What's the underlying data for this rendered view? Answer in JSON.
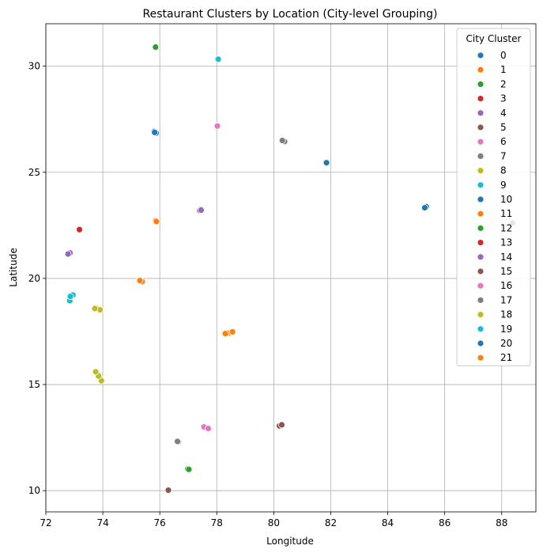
{
  "chart_data": {
    "type": "scatter",
    "title": "Restaurant Clusters by Location (City-level Grouping)",
    "xlabel": "Longitude",
    "ylabel": "Latitude",
    "xlim": [
      72,
      89.2
    ],
    "ylim": [
      9,
      32
    ],
    "xticks": [
      72,
      74,
      76,
      78,
      80,
      82,
      84,
      86,
      88
    ],
    "yticks": [
      10,
      15,
      20,
      25,
      30
    ],
    "grid": true,
    "legend": {
      "title": "City Cluster",
      "placement": "top-right"
    },
    "series": [
      {
        "name": "0",
        "color": "#1f77b4",
        "points": [
          [
            75.85,
            26.9
          ],
          [
            75.8,
            26.92
          ],
          [
            75.87,
            26.85
          ],
          [
            75.82,
            26.88
          ]
        ]
      },
      {
        "name": "1",
        "color": "#ff7f0e",
        "points": [
          [
            78.45,
            17.4
          ],
          [
            78.5,
            17.45
          ],
          [
            78.38,
            17.42
          ],
          [
            78.55,
            17.48
          ],
          [
            78.3,
            17.4
          ]
        ]
      },
      {
        "name": "2",
        "color": "#2ca02c",
        "points": [
          [
            76.98,
            11.02
          ],
          [
            77.02,
            11.0
          ]
        ]
      },
      {
        "name": "3",
        "color": "#d62728",
        "points": [
          [
            88.38,
            22.6
          ]
        ]
      },
      {
        "name": "4",
        "color": "#9467bd",
        "points": [
          [
            72.8,
            21.18
          ],
          [
            72.85,
            21.2
          ],
          [
            72.78,
            21.15
          ]
        ]
      },
      {
        "name": "5",
        "color": "#8c564b",
        "points": [
          [
            80.25,
            13.08
          ],
          [
            80.2,
            13.05
          ],
          [
            80.28,
            13.1
          ]
        ]
      },
      {
        "name": "6",
        "color": "#e377c2",
        "points": [
          [
            77.6,
            12.97
          ],
          [
            77.65,
            12.95
          ],
          [
            77.55,
            13.0
          ],
          [
            77.7,
            12.93
          ]
        ]
      },
      {
        "name": "7",
        "color": "#7f7f7f",
        "points": [
          [
            80.33,
            26.48
          ],
          [
            80.38,
            26.45
          ],
          [
            80.3,
            26.5
          ]
        ]
      },
      {
        "name": "8",
        "color": "#bcbd22",
        "points": [
          [
            73.78,
            18.6
          ],
          [
            73.85,
            18.55
          ],
          [
            73.9,
            18.52
          ],
          [
            73.72,
            18.58
          ]
        ]
      },
      {
        "name": "9",
        "color": "#17becf",
        "points": [
          [
            78.05,
            30.33
          ]
        ]
      },
      {
        "name": "10",
        "color": "#1f77b4",
        "points": [
          [
            85.35,
            23.38
          ],
          [
            85.3,
            23.33
          ]
        ]
      },
      {
        "name": "11",
        "color": "#ff7f0e",
        "points": [
          [
            75.85,
            22.72
          ],
          [
            75.88,
            22.68
          ]
        ]
      },
      {
        "name": "12",
        "color": "#2ca02c",
        "points": [
          [
            75.85,
            30.9
          ]
        ]
      },
      {
        "name": "13",
        "color": "#d62728",
        "points": [
          [
            73.18,
            22.3
          ]
        ]
      },
      {
        "name": "14",
        "color": "#9467bd",
        "points": [
          [
            77.42,
            23.25
          ],
          [
            77.4,
            23.2
          ],
          [
            77.45,
            23.22
          ]
        ]
      },
      {
        "name": "15",
        "color": "#8c564b",
        "points": [
          [
            76.3,
            10.02
          ]
        ]
      },
      {
        "name": "16",
        "color": "#e377c2",
        "points": [
          [
            78.02,
            27.18
          ]
        ]
      },
      {
        "name": "17",
        "color": "#7f7f7f",
        "points": [
          [
            76.65,
            12.3
          ],
          [
            76.62,
            12.32
          ]
        ]
      },
      {
        "name": "18",
        "color": "#bcbd22",
        "points": [
          [
            73.78,
            15.58
          ],
          [
            73.82,
            15.5
          ],
          [
            73.9,
            15.3
          ],
          [
            73.95,
            15.18
          ],
          [
            73.85,
            15.4
          ],
          [
            73.75,
            15.6
          ]
        ]
      },
      {
        "name": "19",
        "color": "#17becf",
        "points": [
          [
            72.85,
            19.05
          ],
          [
            72.87,
            19.1
          ],
          [
            72.9,
            19.2
          ],
          [
            72.83,
            19.0
          ],
          [
            72.88,
            19.12
          ],
          [
            72.95,
            19.22
          ],
          [
            72.84,
            18.95
          ],
          [
            72.86,
            19.15
          ]
        ]
      },
      {
        "name": "20",
        "color": "#1f77b4",
        "points": [
          [
            81.85,
            25.45
          ]
        ]
      },
      {
        "name": "21",
        "color": "#ff7f0e",
        "points": [
          [
            75.33,
            19.88
          ],
          [
            75.38,
            19.85
          ],
          [
            75.3,
            19.9
          ]
        ]
      }
    ]
  }
}
